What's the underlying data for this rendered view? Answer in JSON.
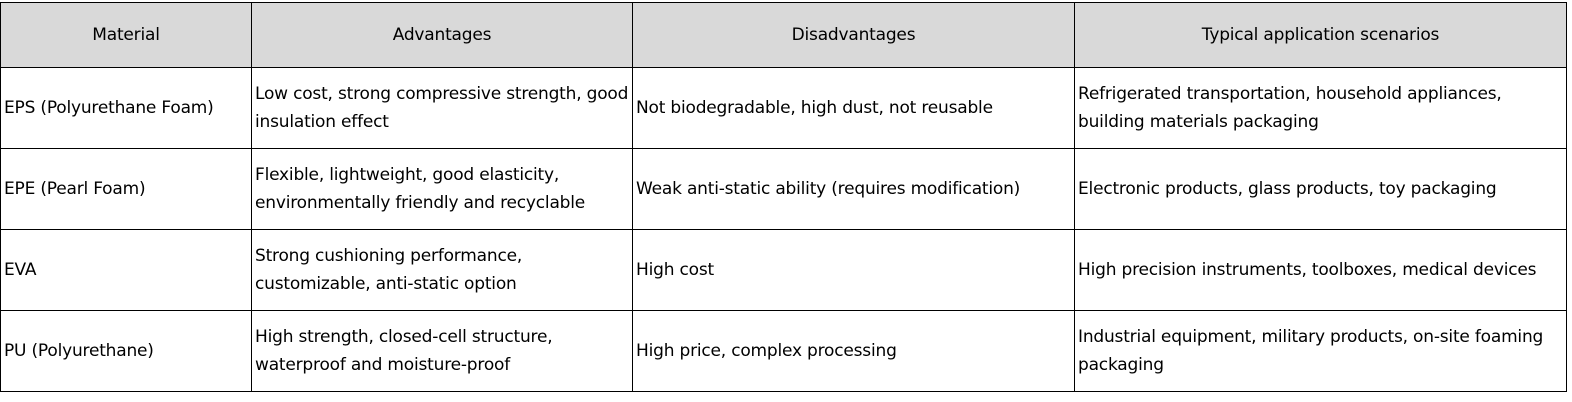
{
  "table": {
    "headers": [
      "Material",
      "Advantages",
      "Disadvantages",
      "Typical application scenarios"
    ],
    "rows": [
      [
        "EPS (Polyurethane Foam)",
        "Low cost, strong compressive strength, good insulation effect",
        "Not biodegradable, high dust, not reusable",
        "Refrigerated transportation, household appliances, building materials packaging"
      ],
      [
        "EPE (Pearl Foam)",
        "Flexible, lightweight, good elasticity, environmentally friendly and recyclable",
        "Weak anti-static ability (requires modification)",
        "Electronic products, glass products, toy packaging"
      ],
      [
        "EVA",
        "Strong cushioning performance, customizable, anti-static option",
        "High cost",
        "High precision instruments, toolboxes, medical devices"
      ],
      [
        "PU (Polyurethane)",
        "High strength, closed-cell structure, waterproof and moisture-proof",
        "High price, complex processing",
        "Industrial equipment, military products, on-site foaming packaging"
      ]
    ]
  },
  "colors": {
    "header_bg": "#d9d9d9",
    "border": "#000000"
  }
}
